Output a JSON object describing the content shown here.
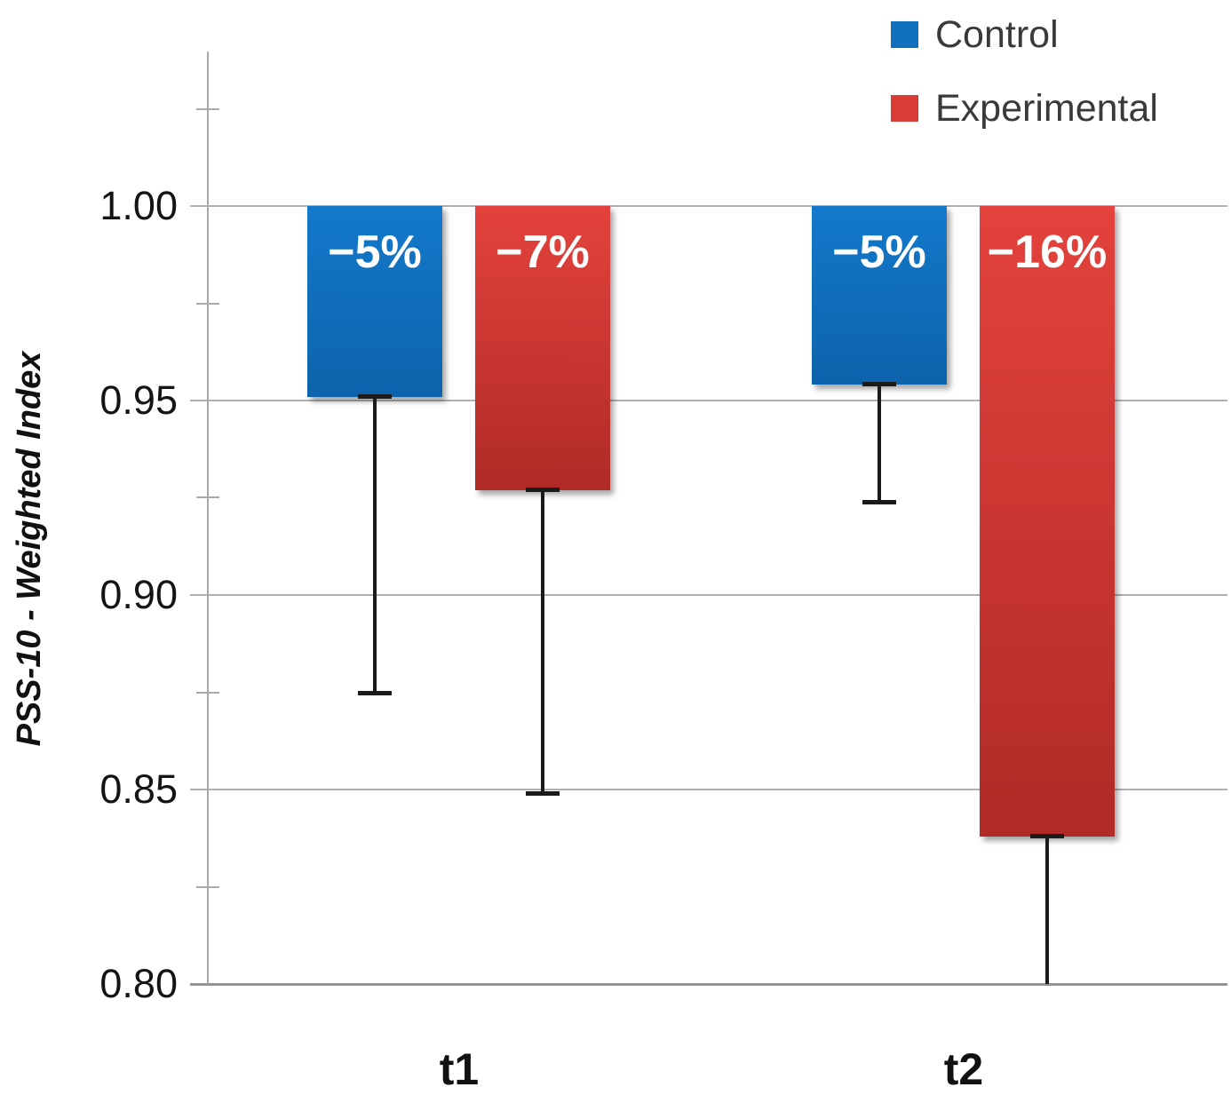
{
  "chart_data": {
    "type": "bar",
    "title": "",
    "ylabel": "PSS-10 - Weighted Index",
    "categories": [
      "t1",
      "t2"
    ],
    "baseline": 1.0,
    "ylim": [
      0.8,
      1.04
    ],
    "grid": true,
    "legend_position": "top-right",
    "y_ticks": [
      {
        "label": "1.00",
        "value": 1.0
      },
      {
        "label": "0.95",
        "value": 0.95
      },
      {
        "label": "0.90",
        "value": 0.9
      },
      {
        "label": "0.85",
        "value": 0.85
      },
      {
        "label": "0.80",
        "value": 0.8
      }
    ],
    "y_minor_tick_values": [
      1.025,
      0.975,
      0.925,
      0.875,
      0.825
    ],
    "series": [
      {
        "name": "Control",
        "legend_color": "#1070be",
        "bar_color_top": "#1379cb",
        "bar_color_bottom": "#0d63ab",
        "values": [
          0.951,
          0.954
        ],
        "bar_labels": [
          "−5%",
          "−5%"
        ],
        "error_low": [
          0.875,
          0.924
        ],
        "error_bottom_cap": [
          true,
          true
        ]
      },
      {
        "name": "Experimental",
        "legend_color": "#d93b36",
        "bar_color_top": "#e4423c",
        "bar_color_bottom": "#b02a27",
        "values": [
          0.927,
          0.838
        ],
        "bar_labels": [
          "−7%",
          "−16%"
        ],
        "error_low": [
          0.849,
          0.8
        ],
        "error_bottom_cap": [
          true,
          false
        ]
      }
    ]
  }
}
